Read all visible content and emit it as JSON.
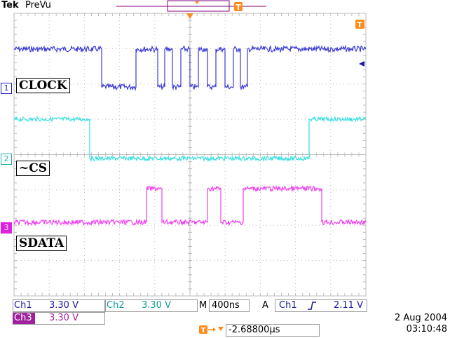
{
  "header": {
    "brand": "Tek",
    "mode": "PreVu"
  },
  "channels": [
    {
      "id": "1",
      "label": "CLOCK",
      "color": "#3b3bd6"
    },
    {
      "id": "2",
      "label": "~CS",
      "color": "#38e0e0"
    },
    {
      "id": "3",
      "label": "SDATA",
      "color": "#f040f0"
    }
  ],
  "readouts": {
    "ch1_name": "Ch1",
    "ch1_scale": "3.30 V",
    "ch2_name": "Ch2",
    "ch2_scale": "3.30 V",
    "ch3_name": "Ch3",
    "ch3_scale": "3.30 V",
    "timebase_prefix": "M",
    "timebase": "400ns",
    "trigger_prefix": "A",
    "trigger_source": "Ch1",
    "trigger_slope_icon": "rising-edge-icon",
    "trigger_level": "2.11 V",
    "trigger_offset_icon": "trigger-position-arrow-icon",
    "trigger_offset": "-2.68800µs"
  },
  "datetime": {
    "date": "2 Aug 2004",
    "time": "03:10:48"
  },
  "markers": {
    "trigger_marker": "T",
    "level_marker_icon": "left-arrow-icon"
  },
  "colors": {
    "ch1": "#3b3bd6",
    "ch2": "#38e0e0",
    "ch3": "#f040f0",
    "grid": "#bdbdbd",
    "orange": "#ff8c1a"
  }
}
